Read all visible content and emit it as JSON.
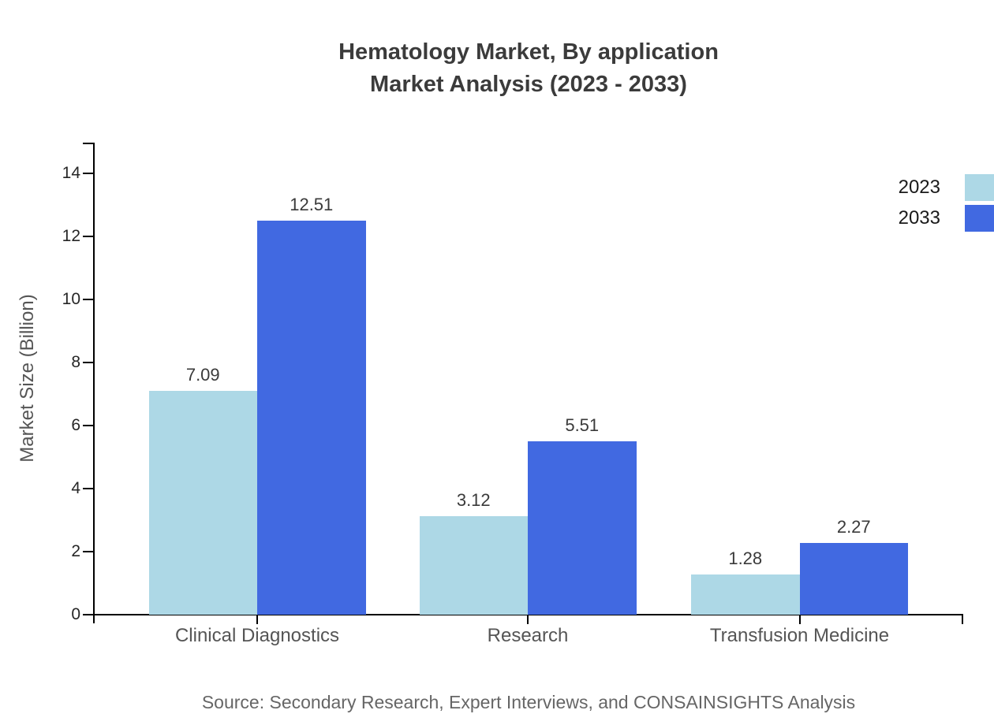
{
  "title": {
    "line1": "Hematology Market, By application",
    "line2": "Market Analysis (2023 - 2033)"
  },
  "chart_data": {
    "type": "bar",
    "categories": [
      "Clinical Diagnostics",
      "Research",
      "Transfusion Medicine"
    ],
    "series": [
      {
        "name": "2023",
        "color": "#ADD8E6",
        "values": [
          7.09,
          3.12,
          1.28
        ]
      },
      {
        "name": "2033",
        "color": "#4169E1",
        "values": [
          12.51,
          5.51,
          2.27
        ]
      }
    ],
    "value_labels": [
      "7.09",
      "12.51",
      "3.12",
      "5.51",
      "1.28",
      "2.27"
    ],
    "title": "Hematology Market, By application Market Analysis (2023 - 2033)",
    "xlabel": "",
    "ylabel": "Market Size (Billion)",
    "ylim": [
      0,
      15
    ],
    "yticks": [
      0,
      2,
      4,
      6,
      8,
      10,
      12,
      14
    ],
    "grid": false,
    "legend_position": "top-right",
    "legend_entries": [
      "2023",
      "2033"
    ]
  },
  "source": "Source: Secondary Research, Expert Interviews, and CONSAINSIGHTS Analysis",
  "colors": {
    "background": "#ffffff",
    "series_2023": "#ADD8E6",
    "series_2033": "#4169E1",
    "axis": "#000000",
    "title_text": "#3b3b3b",
    "tick_text": "#262626",
    "category_text": "#555555",
    "source_text": "#666666"
  }
}
